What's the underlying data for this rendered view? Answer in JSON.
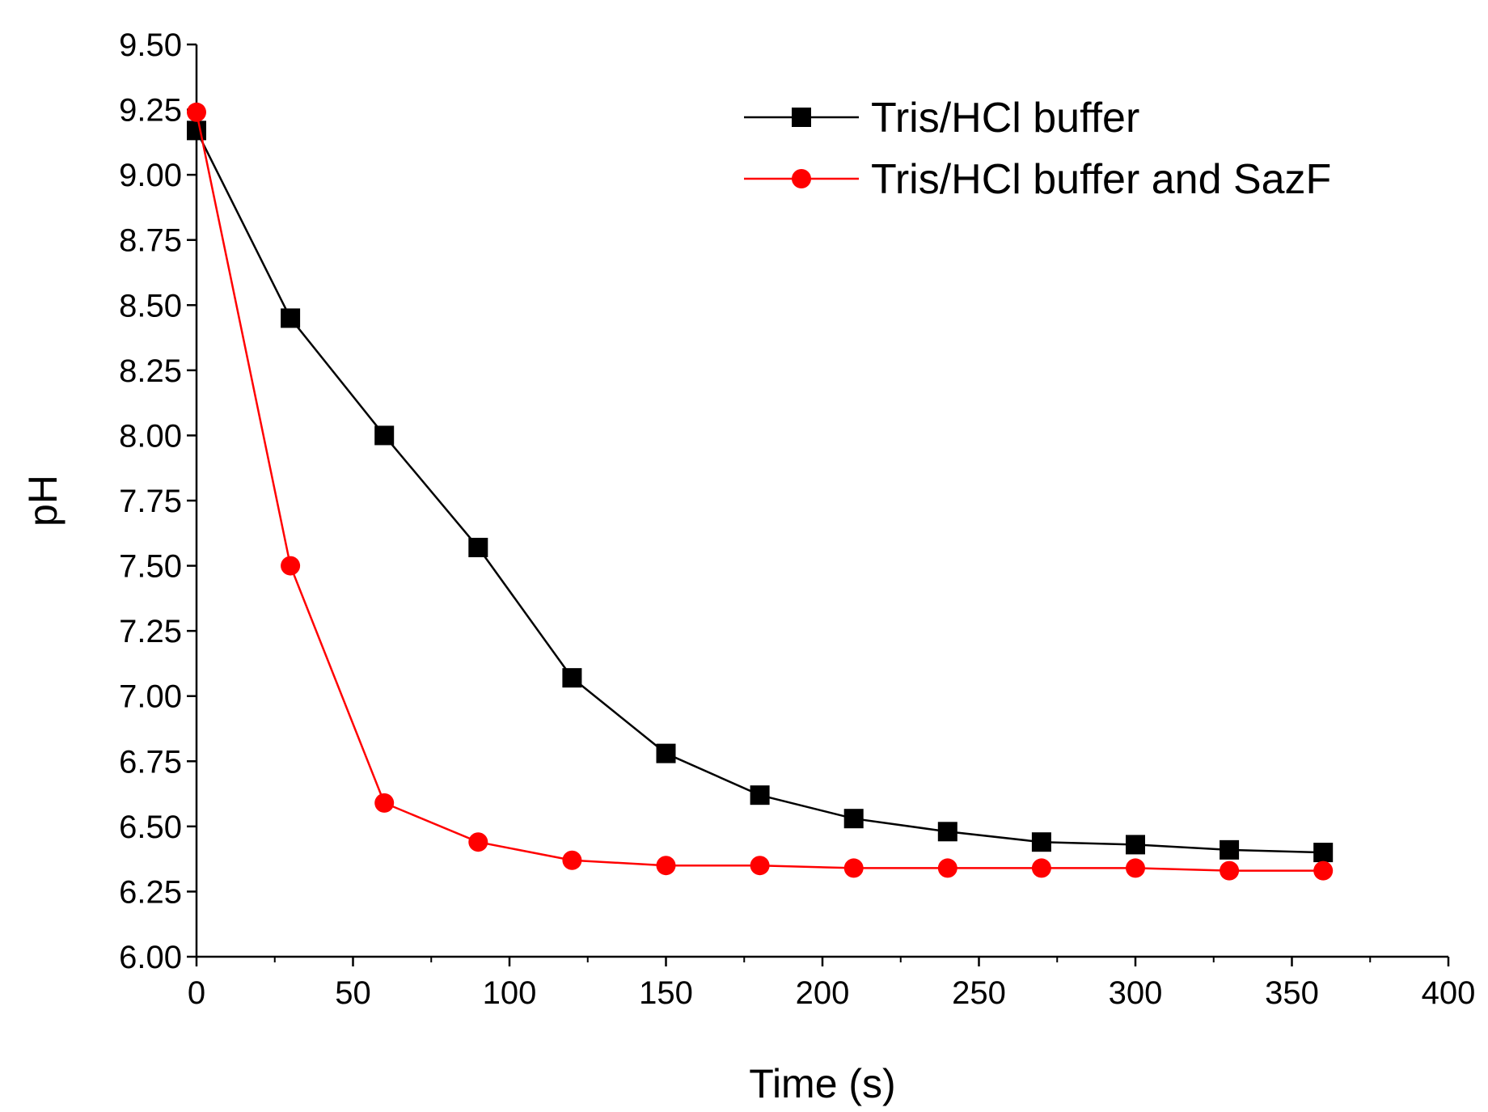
{
  "chart_data": {
    "type": "line",
    "title": "",
    "xlabel": "Time (s)",
    "ylabel": "pH",
    "xlim": [
      0,
      400
    ],
    "ylim": [
      6.0,
      9.5
    ],
    "xticks": [
      "0",
      "50",
      "100",
      "150",
      "200",
      "250",
      "300",
      "350",
      "400"
    ],
    "xtick_values": [
      0,
      50,
      100,
      150,
      200,
      250,
      300,
      350,
      400
    ],
    "yticks": [
      "6.00",
      "6.25",
      "6.50",
      "6.75",
      "7.00",
      "7.25",
      "7.50",
      "7.75",
      "8.00",
      "8.25",
      "8.50",
      "8.75",
      "9.00",
      "9.25",
      "9.50"
    ],
    "ytick_values": [
      6.0,
      6.25,
      6.5,
      6.75,
      7.0,
      7.25,
      7.5,
      7.75,
      8.0,
      8.25,
      8.5,
      8.75,
      9.0,
      9.25,
      9.5
    ],
    "grid": false,
    "legend_position": "top-right",
    "x": [
      0,
      30,
      60,
      90,
      120,
      150,
      180,
      210,
      240,
      270,
      300,
      330,
      360
    ],
    "series": [
      {
        "name": "Tris/HCl buffer",
        "color": "#000000",
        "marker": "square",
        "values": [
          9.17,
          8.45,
          8.0,
          7.57,
          7.07,
          6.78,
          6.62,
          6.53,
          6.48,
          6.44,
          6.43,
          6.41,
          6.4
        ]
      },
      {
        "name": "Tris/HCl buffer and SazF",
        "color": "#ff0000",
        "marker": "circle",
        "values": [
          9.24,
          7.5,
          6.59,
          6.44,
          6.37,
          6.35,
          6.35,
          6.34,
          6.34,
          6.34,
          6.34,
          6.33,
          6.33
        ]
      }
    ]
  }
}
